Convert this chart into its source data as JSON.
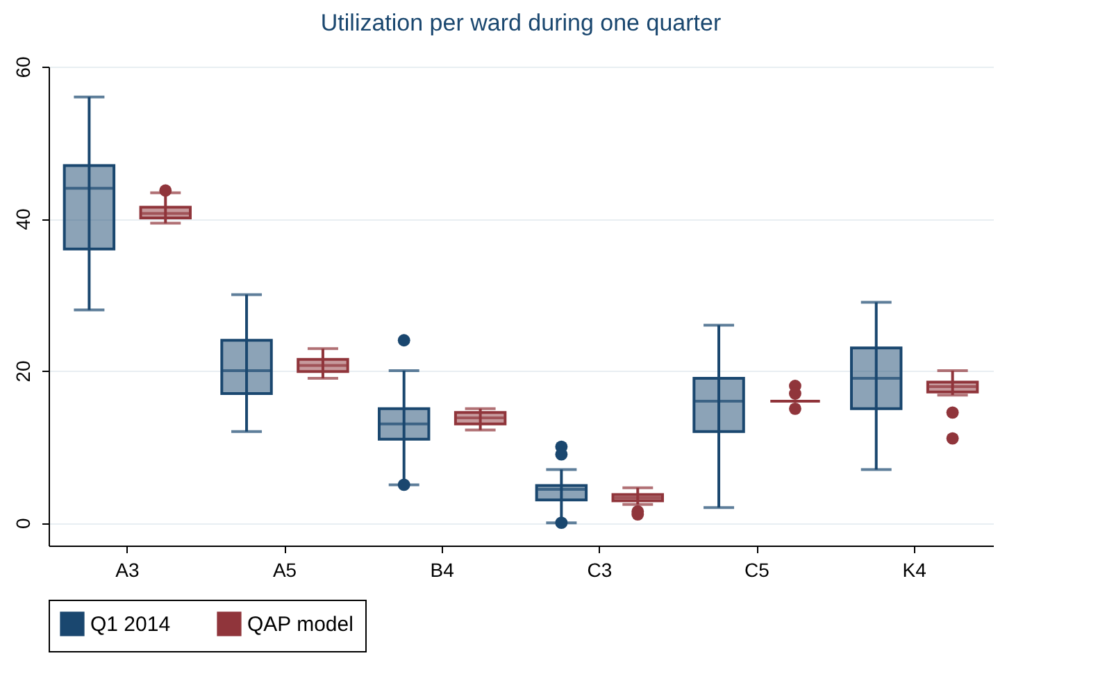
{
  "chart_data": {
    "type": "box",
    "title": "Utilization per ward during one quarter",
    "categories": [
      "A3",
      "A5",
      "B4",
      "C3",
      "C5",
      "K4"
    ],
    "ylim": [
      -3,
      60
    ],
    "yticks": [
      0,
      20,
      40,
      60
    ],
    "grid": "y",
    "legend": "bottom",
    "series": [
      {
        "name": "Q1 2014",
        "color": "#1a476f",
        "boxes": [
          {
            "low": 28,
            "q1": 36,
            "median": 44,
            "q3": 47,
            "high": 56
          },
          {
            "low": 12,
            "q1": 17,
            "median": 20,
            "q3": 24,
            "high": 30
          },
          {
            "low": 5,
            "q1": 11,
            "median": 13,
            "q3": 15,
            "high": 20,
            "outliers": [
              24,
              5
            ]
          },
          {
            "low": 0,
            "q1": 3,
            "median": 4.4,
            "q3": 4.9,
            "high": 7,
            "outliers": [
              10,
              9,
              0
            ]
          },
          {
            "low": 2,
            "q1": 12,
            "median": 16,
            "q3": 19,
            "high": 26
          },
          {
            "low": 7,
            "q1": 15,
            "median": 19,
            "q3": 23,
            "high": 29
          }
        ]
      },
      {
        "name": "QAP model",
        "color": "#90353b",
        "boxes": [
          {
            "low": 39.4,
            "q1": 40.1,
            "median": 40.7,
            "q3": 41.5,
            "high": 43.4,
            "outliers": [
              43.7
            ]
          },
          {
            "low": 19,
            "q1": 19.9,
            "median": 20.7,
            "q3": 21.5,
            "high": 22.9
          },
          {
            "low": 12.2,
            "q1": 13,
            "median": 13.8,
            "q3": 14.5,
            "high": 15
          },
          {
            "low": 2.4,
            "q1": 2.9,
            "median": 3.3,
            "q3": 3.7,
            "high": 4.6,
            "outliers": [
              1.5,
              1.1
            ]
          },
          {
            "low": 16,
            "q1": 16,
            "median": 16,
            "q3": 16,
            "high": 16,
            "outliers": [
              18,
              17,
              15
            ]
          },
          {
            "low": 16.8,
            "q1": 17.2,
            "median": 17.9,
            "q3": 18.5,
            "high": 20,
            "outliers": [
              14.5,
              11.1
            ]
          }
        ]
      }
    ]
  }
}
